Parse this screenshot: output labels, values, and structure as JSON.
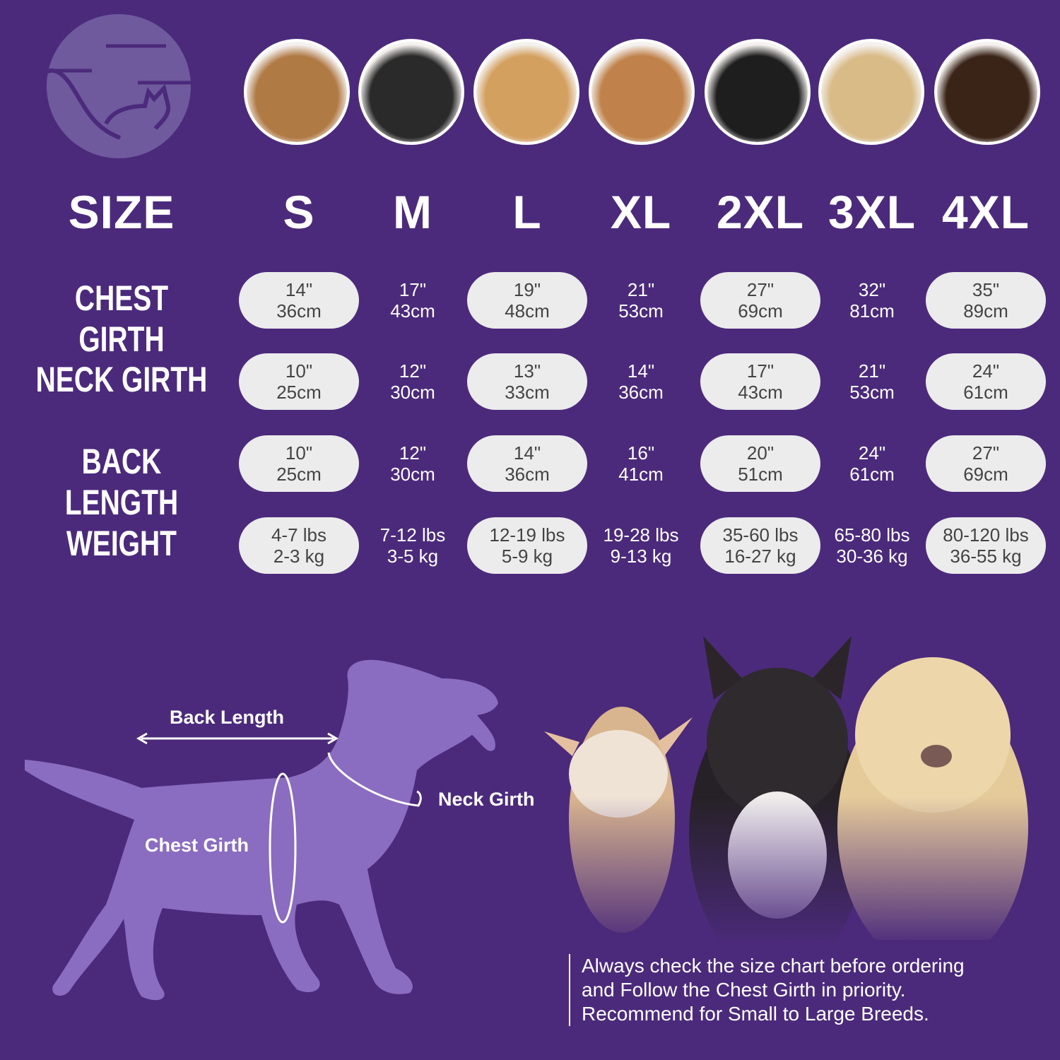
{
  "header": {
    "size_label": "SIZE",
    "sizes": [
      "S",
      "M",
      "L",
      "XL",
      "2XL",
      "3XL",
      "4XL"
    ]
  },
  "photos": [
    {
      "icon": "shih-tzu-photo",
      "color": "#b07a45"
    },
    {
      "icon": "boston-terrier-photo",
      "color": "#2a2a2a"
    },
    {
      "icon": "cocker-spaniel-photo",
      "color": "#d4a060"
    },
    {
      "icon": "beagle-photo",
      "color": "#c0824a"
    },
    {
      "icon": "border-collie-photo",
      "color": "#1e1e1e"
    },
    {
      "icon": "labrador-photo",
      "color": "#d8bb86"
    },
    {
      "icon": "doberman-photo",
      "color": "#3a2418"
    }
  ],
  "rows": [
    {
      "label": "CHEST GIRTH",
      "values": [
        [
          "14\"",
          "36cm"
        ],
        [
          "17\"",
          "43cm"
        ],
        [
          "19\"",
          "48cm"
        ],
        [
          "21\"",
          "53cm"
        ],
        [
          "27\"",
          "69cm"
        ],
        [
          "32\"",
          "81cm"
        ],
        [
          "35\"",
          "89cm"
        ]
      ]
    },
    {
      "label": "NECK GIRTH",
      "values": [
        [
          "10\"",
          "25cm"
        ],
        [
          "12\"",
          "30cm"
        ],
        [
          "13\"",
          "33cm"
        ],
        [
          "14\"",
          "36cm"
        ],
        [
          "17\"",
          "43cm"
        ],
        [
          "21\"",
          "53cm"
        ],
        [
          "24\"",
          "61cm"
        ]
      ]
    },
    {
      "label": "BACK LENGTH",
      "values": [
        [
          "10\"",
          "25cm"
        ],
        [
          "12\"",
          "30cm"
        ],
        [
          "14\"",
          "36cm"
        ],
        [
          "16\"",
          "41cm"
        ],
        [
          "20\"",
          "51cm"
        ],
        [
          "24\"",
          "61cm"
        ],
        [
          "27\"",
          "69cm"
        ]
      ]
    },
    {
      "label": "WEIGHT",
      "values": [
        [
          "4-7 lbs",
          "2-3 kg"
        ],
        [
          "7-12 lbs",
          "3-5 kg"
        ],
        [
          "12-19 lbs",
          "5-9 kg"
        ],
        [
          "19-28 lbs",
          "9-13 kg"
        ],
        [
          "35-60 lbs",
          "16-27 kg"
        ],
        [
          "65-80 lbs",
          "30-36 kg"
        ],
        [
          "80-120 lbs",
          "36-55 kg"
        ]
      ]
    }
  ],
  "diagram": {
    "back_length": "Back Length",
    "neck_girth": "Neck Girth",
    "chest_girth": "Chest Girth"
  },
  "note": [
    "Always check the size chart before ordering",
    "and Follow the Chest Girth in priority.",
    "Recommend for Small to Large Breeds."
  ],
  "colors": {
    "background": "#4b2a7b",
    "pill": "#ececec",
    "silhouette": "#8a6cc0",
    "logo": "#6f5a9e"
  }
}
